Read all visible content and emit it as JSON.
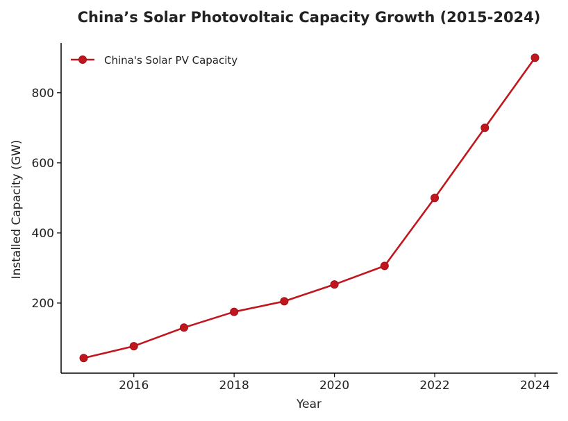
{
  "chart_data": {
    "type": "line",
    "title": "China’s Solar Photovoltaic Capacity Growth (2015-2024)",
    "xlabel": "Year",
    "ylabel": "Installed Capacity (GW)",
    "x": [
      2015,
      2016,
      2017,
      2018,
      2019,
      2020,
      2021,
      2022,
      2023,
      2024
    ],
    "xticks": [
      2016,
      2018,
      2020,
      2022,
      2024
    ],
    "yticks": [
      200,
      400,
      600,
      800
    ],
    "xlim": [
      2014.55,
      2024.45
    ],
    "ylim": [
      0,
      942
    ],
    "grid": false,
    "legend_position": "top-left",
    "series": [
      {
        "name": "China's Solar PV Capacity",
        "values": [
          43,
          77,
          130,
          175,
          205,
          253,
          306,
          500,
          700,
          900
        ],
        "color": "#c0161d",
        "marker": "circle"
      }
    ]
  }
}
